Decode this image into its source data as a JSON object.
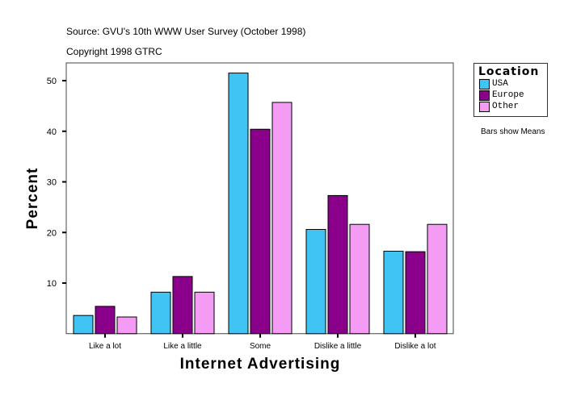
{
  "chart_data": {
    "type": "bar",
    "subtitle_lines": [
      "Source: GVU's 10th WWW User Survey (October 1998)",
      "Copyright 1998 GTRC"
    ],
    "xlabel": "Internet Advertising",
    "ylabel": "Percent",
    "ylim": [
      0,
      53
    ],
    "yticks": [
      10,
      20,
      30,
      40,
      50
    ],
    "grid": false,
    "categories": [
      "Like a lot",
      "Like a little",
      "Some",
      "Dislike a little",
      "Dislike a lot"
    ],
    "legend": {
      "title": "Location",
      "placement": "right"
    },
    "note": "Bars show Means",
    "series": [
      {
        "name": "USA",
        "color": "#40c4f4",
        "values": [
          3.6,
          8.2,
          51.5,
          20.6,
          16.3
        ]
      },
      {
        "name": "Europe",
        "color": "#8b008b",
        "values": [
          5.4,
          11.3,
          40.4,
          27.3,
          16.2
        ]
      },
      {
        "name": "Other",
        "color": "#f49cf4",
        "values": [
          3.3,
          8.2,
          45.7,
          21.6,
          21.6
        ]
      }
    ]
  }
}
